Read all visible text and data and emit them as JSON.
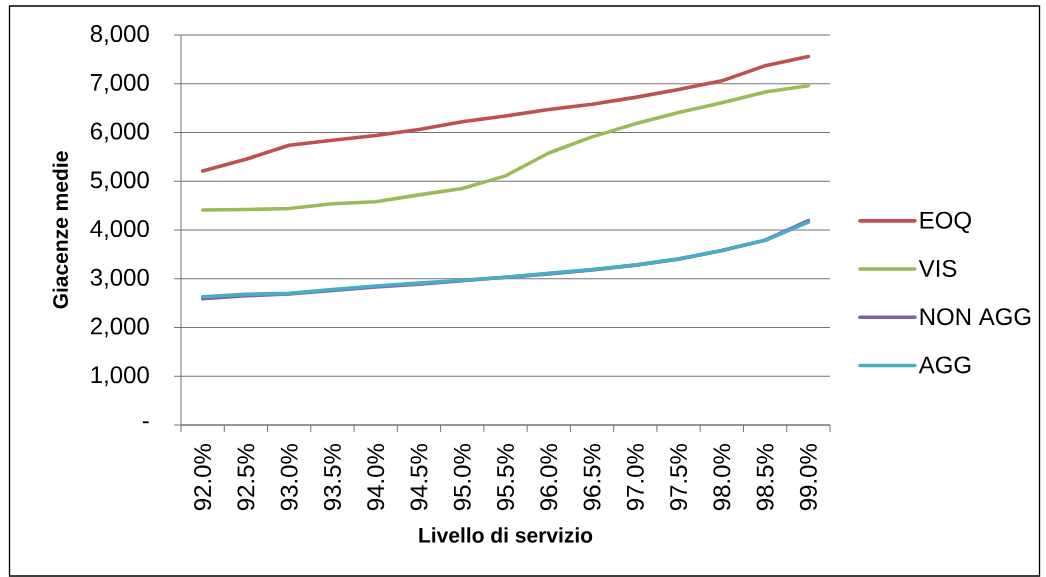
{
  "chart_data": {
    "type": "line",
    "xlabel": "Livello di servizio",
    "ylabel": "Giacenze medie",
    "categories": [
      "92.0%",
      "92.5%",
      "93.0%",
      "93.5%",
      "94.0%",
      "94.5%",
      "95.0%",
      "95.5%",
      "96.0%",
      "96.5%",
      "97.0%",
      "97.5%",
      "98.0%",
      "98.5%",
      "99.0%"
    ],
    "series": [
      {
        "name": "EOQ",
        "color": "#c0504d",
        "values": [
          5210,
          5450,
          5740,
          5840,
          5940,
          6060,
          6220,
          6340,
          6470,
          6580,
          6720,
          6880,
          7060,
          7370,
          7560
        ]
      },
      {
        "name": "VIS",
        "color": "#9bbb59",
        "values": [
          4410,
          4420,
          4440,
          4540,
          4580,
          4720,
          4850,
          5110,
          5580,
          5910,
          6180,
          6410,
          6610,
          6830,
          6960
        ]
      },
      {
        "name": "NON AGG",
        "color": "#8064a2",
        "values": [
          2590,
          2650,
          2690,
          2760,
          2830,
          2890,
          2960,
          3030,
          3100,
          3180,
          3280,
          3400,
          3580,
          3790,
          4190
        ]
      },
      {
        "name": "AGG",
        "color": "#4bacc6",
        "values": [
          2630,
          2680,
          2700,
          2780,
          2850,
          2910,
          2970,
          3030,
          3110,
          3190,
          3280,
          3410,
          3580,
          3790,
          4160
        ]
      }
    ],
    "ylim": [
      0,
      8000
    ],
    "yticks": [
      {
        "value": 0,
        "label": "-"
      },
      {
        "value": 1000,
        "label": "1,000"
      },
      {
        "value": 2000,
        "label": "2,000"
      },
      {
        "value": 3000,
        "label": "3,000"
      },
      {
        "value": 4000,
        "label": "4,000"
      },
      {
        "value": 5000,
        "label": "5,000"
      },
      {
        "value": 6000,
        "label": "6,000"
      },
      {
        "value": 7000,
        "label": "7,000"
      },
      {
        "value": 8000,
        "label": "8,000"
      }
    ],
    "grid": "y",
    "legend": "right",
    "marker": "none",
    "line_style": "solid"
  }
}
